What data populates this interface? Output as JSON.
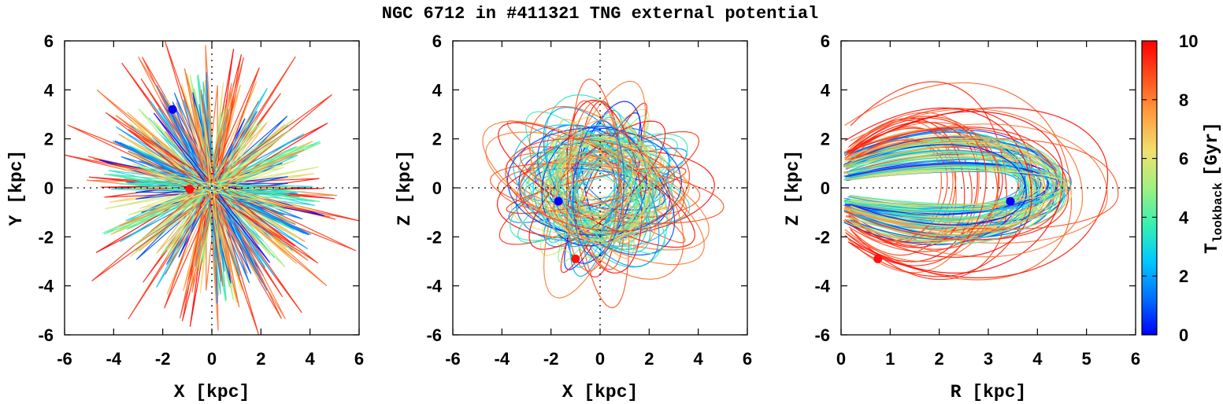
{
  "title": "NGC 6712 in #411321 TNG external potential",
  "colorbar": {
    "label_main": "T",
    "label_sub": "lookback",
    "label_unit": "[Gyr]",
    "range": [
      0,
      10
    ],
    "ticks": [
      "0",
      "2",
      "4",
      "6",
      "8",
      "10"
    ],
    "tick_values": [
      0,
      2,
      4,
      6,
      8,
      10
    ],
    "colors": [
      "#0000ff",
      "#0070ff",
      "#00c8ff",
      "#38f0b0",
      "#a0f080",
      "#f0e070",
      "#ffa040",
      "#ff5020",
      "#ff0000"
    ]
  },
  "marker_colors": {
    "present": "#0000ff",
    "past": "#ff1010"
  },
  "chart_data": [
    {
      "type": "scatter",
      "panel": "X-Y projection",
      "xlabel": "X [kpc]",
      "ylabel": "Y [kpc]",
      "xlim": [
        -6,
        6
      ],
      "ylim": [
        -6,
        6
      ],
      "xticks": [
        "-6",
        "-4",
        "-2",
        "0",
        "2",
        "4",
        "6"
      ],
      "yticks": [
        "-6",
        "-4",
        "-2",
        "0",
        "2",
        "4",
        "6"
      ],
      "zero_axes": true,
      "orbit_style": "radial",
      "max_radius": 4.6,
      "markers": [
        {
          "name": "present",
          "x": -1.6,
          "y": 3.2,
          "t": 0
        },
        {
          "name": "past",
          "x": -0.9,
          "y": -0.05,
          "t": 10
        }
      ]
    },
    {
      "type": "scatter",
      "panel": "X-Z projection",
      "xlabel": "X [kpc]",
      "ylabel": "Z [kpc]",
      "xlim": [
        -6,
        6
      ],
      "ylim": [
        -6,
        6
      ],
      "xticks": [
        "-6",
        "-4",
        "-2",
        "0",
        "2",
        "4",
        "6"
      ],
      "yticks": [
        "-6",
        "-4",
        "-2",
        "0",
        "2",
        "4",
        "6"
      ],
      "zero_axes": true,
      "orbit_style": "loops",
      "max_radius": 4.4,
      "markers": [
        {
          "name": "present",
          "x": -1.7,
          "y": -0.55,
          "t": 0
        },
        {
          "name": "past",
          "x": -1.0,
          "y": -2.9,
          "t": 10
        }
      ]
    },
    {
      "type": "scatter",
      "panel": "R-Z projection",
      "xlabel": "R [kpc]",
      "ylabel": "Z [kpc]",
      "xlim": [
        0,
        6
      ],
      "ylim": [
        -6,
        6
      ],
      "xticks": [
        "0",
        "1",
        "2",
        "3",
        "4",
        "5",
        "6"
      ],
      "yticks": [
        "-6",
        "-4",
        "-2",
        "0",
        "2",
        "4",
        "6"
      ],
      "zero_axes": true,
      "orbit_style": "meridional",
      "max_radius": 4.7,
      "markers": [
        {
          "name": "present",
          "x": 3.45,
          "y": -0.55,
          "t": 0
        },
        {
          "name": "past",
          "x": 0.75,
          "y": -2.9,
          "t": 10
        }
      ]
    }
  ]
}
